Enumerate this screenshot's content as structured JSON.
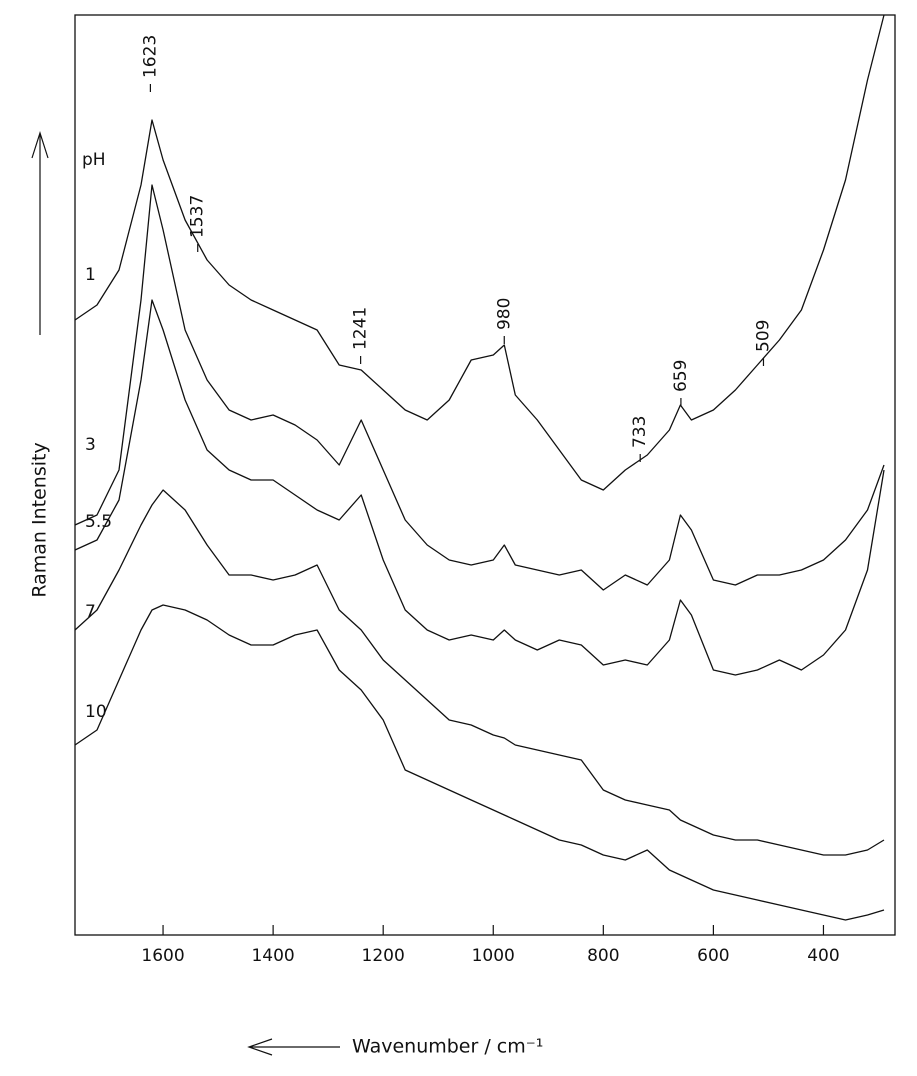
{
  "chart_data": {
    "type": "line",
    "x_label": "Wavenumber / cm⁻¹",
    "y_label": "Raman Intensity",
    "legend_title": "pH",
    "x": [
      1760,
      1720,
      1680,
      1640,
      1620,
      1600,
      1560,
      1520,
      1480,
      1440,
      1400,
      1360,
      1320,
      1280,
      1240,
      1200,
      1160,
      1120,
      1080,
      1040,
      1000,
      980,
      960,
      920,
      880,
      840,
      800,
      760,
      720,
      680,
      660,
      640,
      600,
      560,
      520,
      480,
      440,
      400,
      360,
      320,
      290
    ],
    "xlim": [
      1760,
      270
    ],
    "xticks": [
      1600,
      1400,
      1200,
      1000,
      800,
      600,
      400
    ],
    "ylim": [
      0,
      920
    ],
    "peak_labels": [
      1623,
      1537,
      1241,
      980,
      733,
      659,
      509
    ],
    "series": [
      {
        "name": "1",
        "color": "#111111",
        "values": [
          615,
          630,
          665,
          750,
          815,
          775,
          715,
          675,
          650,
          635,
          625,
          615,
          605,
          570,
          565,
          545,
          525,
          515,
          535,
          575,
          580,
          590,
          540,
          515,
          485,
          455,
          445,
          465,
          480,
          505,
          530,
          515,
          525,
          545,
          570,
          595,
          625,
          685,
          755,
          855,
          920
        ]
      },
      {
        "name": "3",
        "color": "#111111",
        "values": [
          410,
          420,
          465,
          635,
          750,
          705,
          605,
          555,
          525,
          515,
          520,
          510,
          495,
          470,
          515,
          465,
          415,
          390,
          375,
          370,
          375,
          390,
          370,
          365,
          360,
          365,
          345,
          360,
          350,
          375,
          420,
          405,
          355,
          350,
          360,
          360,
          365,
          375,
          395,
          425,
          470
        ]
      },
      {
        "name": "5.5",
        "color": "#111111",
        "values": [
          385,
          395,
          435,
          555,
          635,
          605,
          535,
          485,
          465,
          455,
          455,
          440,
          425,
          415,
          440,
          375,
          325,
          305,
          295,
          300,
          295,
          305,
          295,
          285,
          295,
          290,
          270,
          275,
          270,
          295,
          335,
          320,
          265,
          260,
          265,
          275,
          265,
          280,
          305,
          365,
          465
        ]
      },
      {
        "name": "7",
        "color": "#111111",
        "values": [
          305,
          325,
          365,
          410,
          430,
          445,
          425,
          390,
          360,
          360,
          355,
          360,
          370,
          325,
          305,
          275,
          255,
          235,
          215,
          210,
          200,
          197,
          190,
          185,
          180,
          175,
          145,
          135,
          130,
          125,
          115,
          110,
          100,
          95,
          95,
          90,
          85,
          80,
          80,
          85,
          95
        ]
      },
      {
        "name": "10",
        "color": "#111111",
        "values": [
          190,
          205,
          255,
          305,
          325,
          330,
          325,
          315,
          300,
          290,
          290,
          300,
          305,
          265,
          245,
          215,
          165,
          155,
          145,
          135,
          125,
          120,
          115,
          105,
          95,
          90,
          80,
          75,
          85,
          65,
          60,
          55,
          45,
          40,
          35,
          30,
          25,
          20,
          15,
          20,
          25
        ]
      }
    ]
  }
}
